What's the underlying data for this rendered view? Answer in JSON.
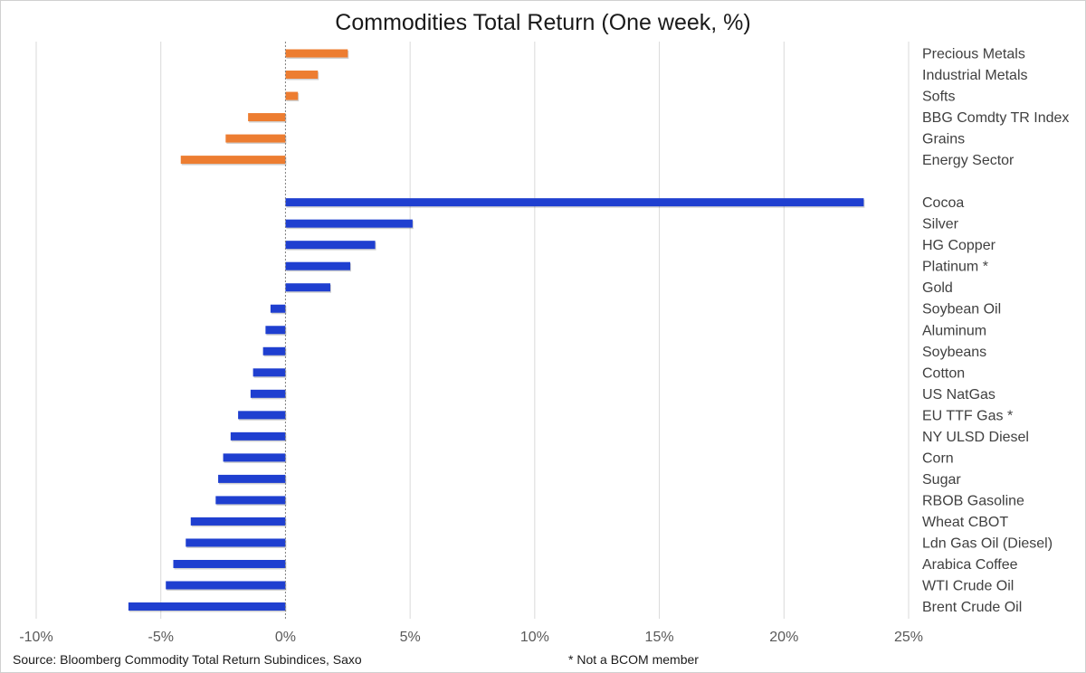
{
  "footer": {
    "source": "Source: Bloomberg Commodity Total Return Subindices, Saxo",
    "note": "* Not a BCOM member"
  },
  "chart_data": {
    "type": "bar",
    "orientation": "horizontal",
    "title": "Commodities Total Return (One week, %)",
    "xlim": [
      -10,
      25
    ],
    "xticks": [
      "-10%",
      "-5%",
      "0%",
      "5%",
      "10%",
      "15%",
      "20%",
      "25%"
    ],
    "grid": true,
    "colors": {
      "sector": "#ed7d31",
      "commodity": "#1f3fd0",
      "grid": "#d9d9d9",
      "zero_line": "#7f7f7f"
    },
    "series": [
      {
        "group": "sector",
        "categories": [
          "Precious Metals",
          "Industrial Metals",
          "Softs",
          "BBG Comdty TR Index",
          "Grains",
          "Energy Sector"
        ],
        "values": [
          2.5,
          1.3,
          0.5,
          -1.5,
          -2.4,
          -4.2
        ]
      },
      {
        "group": "commodity",
        "categories": [
          "Cocoa",
          "Silver",
          "HG Copper",
          "Platinum *",
          "Gold",
          "Soybean Oil",
          "Aluminum",
          "Soybeans",
          "Cotton",
          "US NatGas",
          "EU TTF Gas *",
          "NY ULSD Diesel",
          "Corn",
          "Sugar",
          "RBOB Gasoline",
          "Wheat CBOT",
          "Ldn Gas Oil (Diesel)",
          "Arabica Coffee",
          "WTI Crude Oil",
          "Brent Crude Oil"
        ],
        "values": [
          23.2,
          5.1,
          3.6,
          2.6,
          1.8,
          -0.6,
          -0.8,
          -0.9,
          -1.3,
          -1.4,
          -1.9,
          -2.2,
          -2.5,
          -2.7,
          -2.8,
          -3.8,
          -4.0,
          -4.5,
          -4.8,
          -6.3
        ]
      }
    ]
  }
}
